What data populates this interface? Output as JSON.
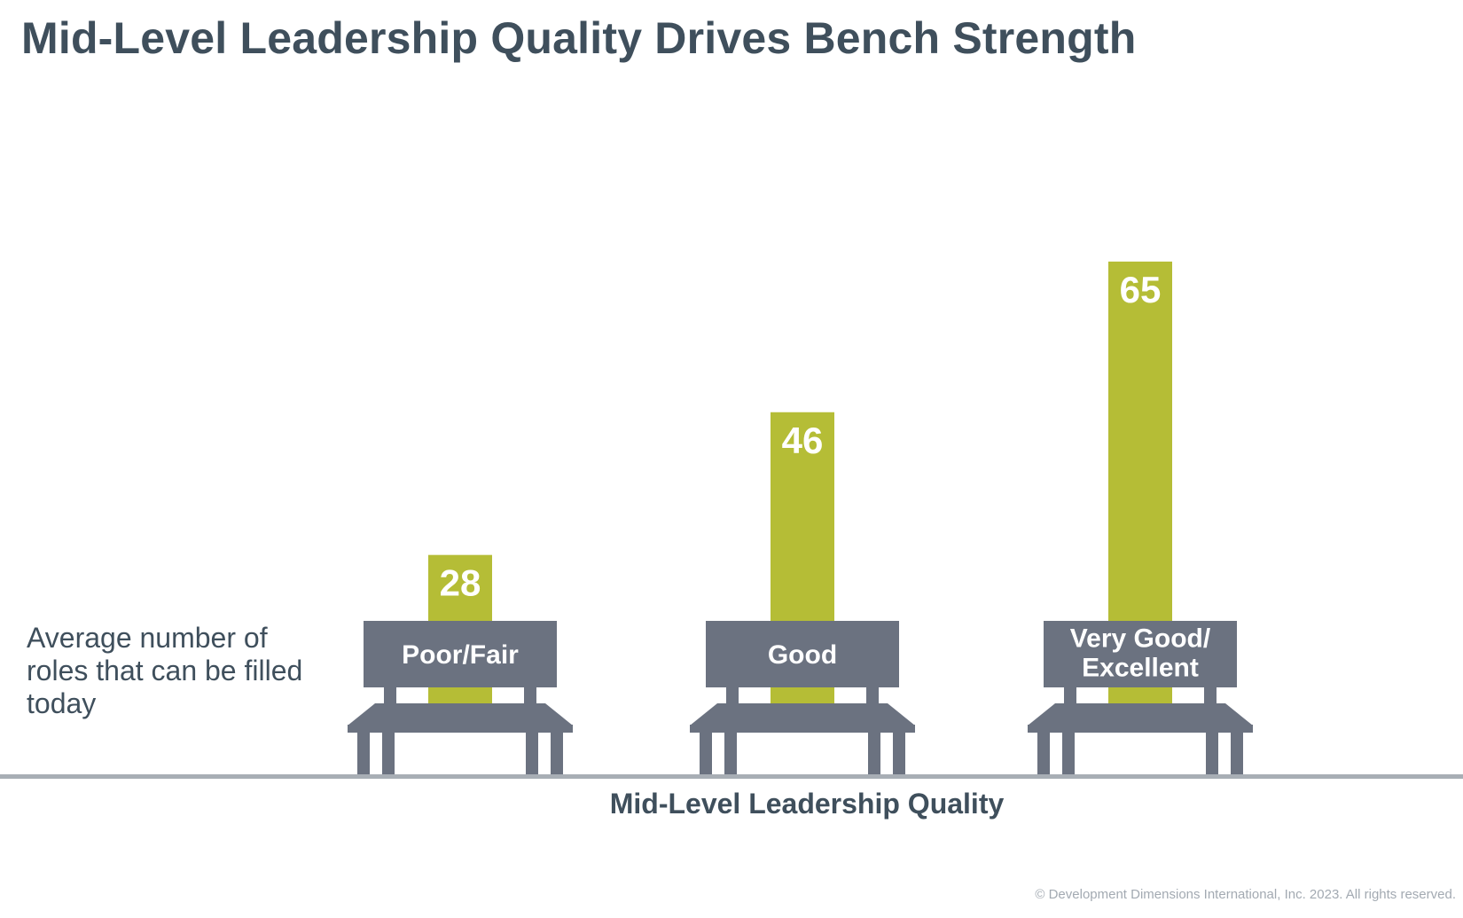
{
  "title": "Mid-Level Leadership Quality Drives Bench Strength",
  "ylabel": "Average number of roles that can be filled today",
  "xlabel": "Mid-Level Leadership Quality",
  "copyright": "© Development Dimensions International, Inc. 2023. All rights reserved.",
  "colors": {
    "bar": "#b5bd36",
    "bench": "#6b7280",
    "baseline": "#a8aeb5",
    "text": "#3f4f5c"
  },
  "chart_data": {
    "type": "bar",
    "categories": [
      "Poor/Fair",
      "Good",
      "Very Good/ Excellent"
    ],
    "category_lines": [
      [
        "Poor/Fair"
      ],
      [
        "Good"
      ],
      [
        "Very Good/",
        "Excellent"
      ]
    ],
    "values": [
      28,
      46,
      65
    ],
    "data_labels": [
      "28",
      "46",
      "65"
    ],
    "xlabel": "Mid-Level Leadership Quality",
    "ylabel": "Average number of roles that can be filled today",
    "ylim": [
      0,
      78
    ],
    "grid": false,
    "legend": "none"
  }
}
